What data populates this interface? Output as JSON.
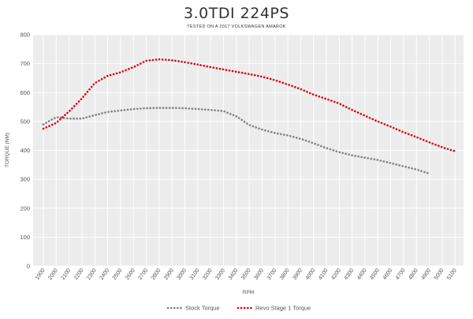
{
  "chart_data": {
    "type": "line",
    "title": "3.0TDI 224PS",
    "subtitle": "TESTED ON A 2017 VOLKSWAGEN AMAROK",
    "xlabel": "RPM",
    "ylabel": "TORQUE (NM)",
    "ylim": [
      0,
      800
    ],
    "yticks": [
      0,
      100,
      200,
      300,
      400,
      500,
      600,
      700,
      800
    ],
    "xticks": [
      1900,
      2000,
      2100,
      2200,
      2300,
      2400,
      2500,
      2600,
      2700,
      2800,
      2900,
      3000,
      3100,
      3200,
      3300,
      3400,
      3500,
      3600,
      3700,
      3800,
      3900,
      4000,
      4100,
      4200,
      4300,
      4400,
      4500,
      4600,
      4700,
      4800,
      4900,
      5000,
      5100
    ],
    "grid": true,
    "legend": "bottom-center",
    "series": [
      {
        "name": "Stock Torque",
        "color": "#808080",
        "x": [
          1900,
          2000,
          2100,
          2200,
          2300,
          2400,
          2500,
          2600,
          2700,
          2800,
          2900,
          3000,
          3100,
          3200,
          3300,
          3400,
          3500,
          3600,
          3700,
          3800,
          3900,
          4000,
          4100,
          4200,
          4300,
          4400,
          4500,
          4600,
          4700,
          4800,
          4900
        ],
        "y": [
          490,
          515,
          510,
          510,
          522,
          533,
          538,
          543,
          546,
          547,
          547,
          546,
          543,
          540,
          536,
          518,
          488,
          472,
          460,
          452,
          440,
          425,
          408,
          394,
          383,
          375,
          367,
          356,
          345,
          334,
          320
        ]
      },
      {
        "name": "Revo Stage 1 Torque",
        "color": "#e0000f",
        "x": [
          1900,
          2000,
          2100,
          2200,
          2300,
          2400,
          2500,
          2600,
          2700,
          2800,
          2900,
          3000,
          3100,
          3200,
          3300,
          3400,
          3500,
          3600,
          3700,
          3800,
          3900,
          4000,
          4100,
          4200,
          4300,
          4400,
          4500,
          4600,
          4700,
          4800,
          4900,
          5000,
          5100
        ],
        "y": [
          475,
          495,
          535,
          580,
          633,
          658,
          670,
          688,
          710,
          715,
          712,
          705,
          697,
          688,
          680,
          672,
          664,
          655,
          643,
          628,
          612,
          593,
          578,
          562,
          540,
          520,
          500,
          482,
          463,
          446,
          428,
          411,
          397
        ]
      }
    ]
  }
}
